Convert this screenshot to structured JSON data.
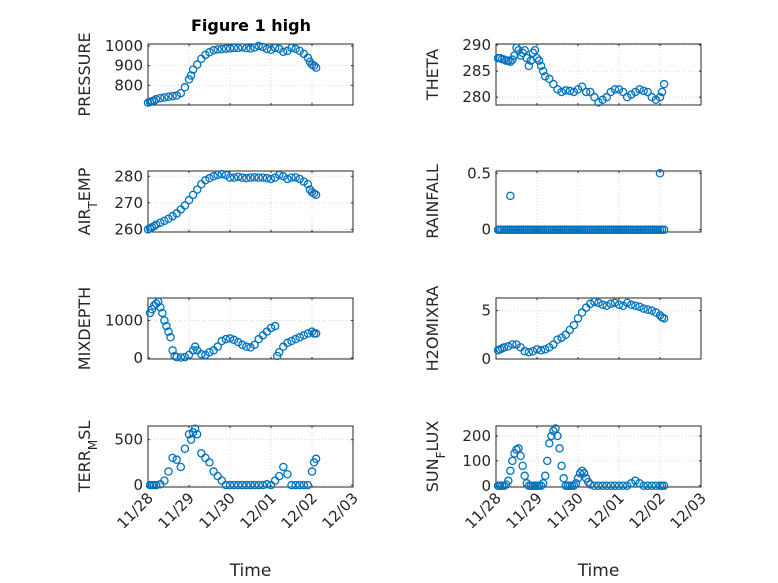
{
  "figure": {
    "title": "Figure 1 high"
  },
  "chart_data": [
    {
      "type": "scatter",
      "id": "pressure",
      "ylabel_parts": [
        [
          "PRESSURE",
          ""
        ]
      ],
      "ylim": [
        700,
        1010
      ],
      "yticks": [
        800,
        900,
        1000
      ],
      "xlim": [
        0,
        5
      ],
      "x": [
        0,
        0.05,
        0.1,
        0.15,
        0.2,
        0.3,
        0.4,
        0.5,
        0.6,
        0.7,
        0.8,
        0.9,
        1.0,
        1.05,
        1.1,
        1.2,
        1.3,
        1.4,
        1.5,
        1.6,
        1.7,
        1.8,
        1.9,
        2.0,
        2.1,
        2.2,
        2.3,
        2.4,
        2.5,
        2.6,
        2.7,
        2.8,
        2.9,
        3.0,
        3.1,
        3.2,
        3.3,
        3.4,
        3.5,
        3.6,
        3.7,
        3.8,
        3.9,
        3.95,
        4.0,
        4.05,
        4.1
      ],
      "y": [
        712,
        715,
        720,
        722,
        730,
        735,
        738,
        742,
        745,
        748,
        760,
        790,
        830,
        850,
        880,
        905,
        935,
        955,
        968,
        978,
        982,
        984,
        986,
        988,
        990,
        990,
        993,
        989,
        987,
        992,
        1000,
        995,
        985,
        980,
        990,
        985,
        970,
        975,
        990,
        985,
        975,
        960,
        940,
        920,
        905,
        900,
        890
      ]
    },
    {
      "type": "scatter",
      "id": "theta",
      "ylabel_parts": [
        [
          "THETA",
          ""
        ]
      ],
      "ylim": [
        278.5,
        290.2
      ],
      "yticks": [
        280,
        285,
        290
      ],
      "xlim": [
        0,
        5
      ],
      "x": [
        0.05,
        0.1,
        0.15,
        0.2,
        0.25,
        0.3,
        0.35,
        0.4,
        0.45,
        0.5,
        0.55,
        0.6,
        0.65,
        0.7,
        0.75,
        0.8,
        0.85,
        0.9,
        0.95,
        1.0,
        1.05,
        1.1,
        1.15,
        1.2,
        1.3,
        1.4,
        1.5,
        1.6,
        1.7,
        1.8,
        1.9,
        2.0,
        2.1,
        2.2,
        2.3,
        2.4,
        2.5,
        2.6,
        2.7,
        2.8,
        2.9,
        3.0,
        3.1,
        3.2,
        3.3,
        3.4,
        3.5,
        3.6,
        3.7,
        3.8,
        3.9,
        4.0,
        4.05,
        4.1
      ],
      "y": [
        287.5,
        287.5,
        287.3,
        287.2,
        287,
        287,
        286.8,
        287.2,
        288,
        289.5,
        289,
        288,
        288.5,
        289,
        287.5,
        286,
        287,
        288.5,
        289,
        287.5,
        287,
        286,
        285,
        284,
        283.5,
        282.5,
        281.5,
        281,
        281.3,
        281.2,
        281,
        281.5,
        282,
        281,
        281,
        280,
        279,
        279.5,
        280,
        281,
        281.5,
        281.5,
        281,
        280,
        280.5,
        281,
        281.5,
        281.2,
        281,
        280,
        279.5,
        280,
        281,
        282.5
      ]
    },
    {
      "type": "scatter",
      "id": "airtemp",
      "ylabel_parts": [
        [
          "AIR",
          ""
        ],
        [
          "T",
          "sub"
        ],
        [
          "EMP",
          ""
        ]
      ],
      "ylim": [
        259,
        282
      ],
      "yticks": [
        260,
        270,
        280
      ],
      "xlim": [
        0,
        5
      ],
      "x": [
        0,
        0.05,
        0.1,
        0.15,
        0.2,
        0.3,
        0.4,
        0.5,
        0.6,
        0.7,
        0.8,
        0.9,
        1.0,
        1.1,
        1.2,
        1.3,
        1.4,
        1.5,
        1.6,
        1.7,
        1.8,
        1.9,
        2.0,
        2.1,
        2.2,
        2.3,
        2.4,
        2.5,
        2.6,
        2.7,
        2.8,
        2.9,
        3.0,
        3.1,
        3.2,
        3.3,
        3.4,
        3.5,
        3.6,
        3.7,
        3.8,
        3.9,
        3.95,
        4.0,
        4.05,
        4.1
      ],
      "y": [
        260,
        260.3,
        260.8,
        261.2,
        261.8,
        262.5,
        263.2,
        264,
        265,
        266,
        267.5,
        269,
        271,
        273,
        275,
        277,
        278.5,
        279.3,
        280,
        280.5,
        280.8,
        280.5,
        279.5,
        279.5,
        279.8,
        279.5,
        279.3,
        279.5,
        279.6,
        279.5,
        279.5,
        279.3,
        279,
        279.5,
        280.5,
        280,
        279,
        279.5,
        279.6,
        279,
        278,
        277,
        275,
        274,
        273.5,
        273
      ]
    },
    {
      "type": "scatter",
      "id": "rainfall",
      "ylabel_parts": [
        [
          "RAINFALL",
          ""
        ]
      ],
      "ylim": [
        -0.02,
        0.52
      ],
      "yticks": [
        0,
        0.5
      ],
      "xlim": [
        0,
        5
      ],
      "x": [
        0.05,
        0.1,
        0.15,
        0.2,
        0.25,
        0.3,
        0.35,
        0.4,
        0.45,
        0.5,
        0.55,
        0.6,
        0.65,
        0.7,
        0.75,
        0.8,
        0.85,
        0.9,
        0.95,
        1.0,
        1.05,
        1.1,
        1.15,
        1.2,
        1.25,
        1.3,
        1.35,
        1.4,
        1.45,
        1.5,
        1.55,
        1.6,
        1.65,
        1.7,
        1.75,
        1.8,
        1.85,
        1.9,
        1.95,
        2.0,
        2.05,
        2.1,
        2.15,
        2.2,
        2.25,
        2.3,
        2.35,
        2.4,
        2.45,
        2.5,
        2.55,
        2.6,
        2.65,
        2.7,
        2.75,
        2.8,
        2.85,
        2.9,
        2.95,
        3.0,
        3.05,
        3.1,
        3.15,
        3.2,
        3.25,
        3.3,
        3.35,
        3.4,
        3.45,
        3.5,
        3.55,
        3.6,
        3.65,
        3.7,
        3.75,
        3.8,
        3.85,
        3.9,
        3.95,
        4.0,
        4.05,
        4.1,
        0.35,
        4.0
      ],
      "y": [
        0,
        0,
        0,
        0,
        0,
        0,
        0,
        0,
        0,
        0,
        0,
        0,
        0,
        0,
        0,
        0,
        0,
        0,
        0,
        0,
        0,
        0,
        0,
        0,
        0,
        0,
        0,
        0,
        0,
        0,
        0,
        0,
        0,
        0,
        0,
        0,
        0,
        0,
        0,
        0,
        0,
        0,
        0,
        0,
        0,
        0,
        0,
        0,
        0,
        0,
        0,
        0,
        0,
        0,
        0,
        0,
        0,
        0,
        0,
        0,
        0,
        0,
        0,
        0,
        0,
        0,
        0,
        0,
        0,
        0,
        0,
        0,
        0,
        0,
        0,
        0,
        0,
        0,
        0,
        0,
        0,
        0,
        0.3,
        0.5
      ]
    },
    {
      "type": "scatter",
      "id": "mixdepth",
      "ylabel_parts": [
        [
          "MIXDEPTH",
          ""
        ]
      ],
      "ylim": [
        -30,
        1600
      ],
      "yticks": [
        0,
        1000
      ],
      "xlim": [
        0,
        5
      ],
      "x": [
        0.05,
        0.1,
        0.15,
        0.2,
        0.25,
        0.3,
        0.35,
        0.4,
        0.45,
        0.5,
        0.55,
        0.6,
        0.65,
        0.7,
        0.8,
        0.9,
        1.0,
        1.1,
        1.15,
        1.2,
        1.3,
        1.4,
        1.5,
        1.6,
        1.7,
        1.8,
        1.9,
        2.0,
        2.1,
        2.2,
        2.3,
        2.4,
        2.5,
        2.6,
        2.7,
        2.8,
        2.9,
        3.0,
        3.1,
        3.15,
        3.2,
        3.3,
        3.4,
        3.5,
        3.6,
        3.7,
        3.8,
        3.9,
        4.0,
        4.05,
        4.1
      ],
      "y": [
        1200,
        1300,
        1400,
        1450,
        1500,
        1350,
        1200,
        1000,
        850,
        700,
        550,
        200,
        50,
        20,
        10,
        20,
        80,
        200,
        300,
        200,
        100,
        80,
        150,
        200,
        300,
        450,
        500,
        520,
        480,
        420,
        350,
        300,
        280,
        350,
        500,
        600,
        700,
        800,
        850,
        50,
        150,
        300,
        400,
        450,
        500,
        550,
        600,
        650,
        700,
        650,
        650
      ]
    },
    {
      "type": "scatter",
      "id": "h2omixra",
      "ylabel_parts": [
        [
          "H2OMIXRA",
          ""
        ]
      ],
      "ylim": [
        0,
        6.3
      ],
      "yticks": [
        0,
        5
      ],
      "xlim": [
        0,
        5
      ],
      "x": [
        0.05,
        0.1,
        0.15,
        0.2,
        0.3,
        0.4,
        0.5,
        0.6,
        0.7,
        0.8,
        0.9,
        1.0,
        1.1,
        1.2,
        1.3,
        1.4,
        1.5,
        1.6,
        1.7,
        1.8,
        1.9,
        2.0,
        2.1,
        2.2,
        2.3,
        2.4,
        2.5,
        2.6,
        2.7,
        2.8,
        2.9,
        3.0,
        3.1,
        3.2,
        3.3,
        3.4,
        3.5,
        3.6,
        3.7,
        3.8,
        3.9,
        4.0,
        4.05,
        4.1
      ],
      "y": [
        0.9,
        1.0,
        1.1,
        1.2,
        1.3,
        1.5,
        1.5,
        1.2,
        0.8,
        0.7,
        0.8,
        1.0,
        0.9,
        1.0,
        1.2,
        1.5,
        2.0,
        2.2,
        2.5,
        3.0,
        3.5,
        4.2,
        4.8,
        5.3,
        5.7,
        5.9,
        5.8,
        5.6,
        5.5,
        5.7,
        5.8,
        5.6,
        5.5,
        5.8,
        5.6,
        5.5,
        5.4,
        5.2,
        5.1,
        5.0,
        4.8,
        4.5,
        4.3,
        4.2
      ]
    },
    {
      "type": "scatter",
      "id": "terrmsl",
      "ylabel_parts": [
        [
          "TERR",
          ""
        ],
        [
          "M",
          "sub"
        ],
        [
          "SL",
          ""
        ]
      ],
      "ylim": [
        -20,
        650
      ],
      "yticks": [
        0,
        500
      ],
      "xlim": [
        0,
        5
      ],
      "x": [
        0.05,
        0.1,
        0.15,
        0.2,
        0.3,
        0.4,
        0.5,
        0.6,
        0.7,
        0.8,
        0.9,
        1.0,
        1.05,
        1.1,
        1.15,
        1.2,
        1.3,
        1.4,
        1.5,
        1.6,
        1.7,
        1.8,
        1.9,
        2.0,
        2.1,
        2.2,
        2.3,
        2.4,
        2.5,
        2.6,
        2.7,
        2.8,
        2.9,
        3.0,
        3.1,
        3.2,
        3.3,
        3.4,
        3.5,
        3.6,
        3.7,
        3.8,
        3.9,
        4.0,
        4.05,
        4.1
      ],
      "y": [
        0,
        0,
        0,
        0,
        10,
        50,
        150,
        300,
        280,
        200,
        400,
        560,
        500,
        580,
        620,
        560,
        350,
        300,
        250,
        150,
        100,
        50,
        0,
        0,
        0,
        0,
        0,
        0,
        0,
        0,
        0,
        0,
        10,
        0,
        50,
        100,
        200,
        120,
        0,
        0,
        0,
        0,
        0,
        150,
        250,
        290
      ]
    },
    {
      "type": "scatter",
      "id": "sunflux",
      "ylabel_parts": [
        [
          "SUN",
          ""
        ],
        [
          "F",
          "sub"
        ],
        [
          "LUX",
          ""
        ]
      ],
      "ylim": [
        -5,
        240
      ],
      "yticks": [
        0,
        100,
        200
      ],
      "xlim": [
        0,
        5
      ],
      "x": [
        0.05,
        0.1,
        0.15,
        0.2,
        0.25,
        0.3,
        0.35,
        0.4,
        0.45,
        0.5,
        0.55,
        0.6,
        0.65,
        0.7,
        0.75,
        0.8,
        0.85,
        0.9,
        0.95,
        1.0,
        1.05,
        1.1,
        1.15,
        1.2,
        1.25,
        1.3,
        1.35,
        1.4,
        1.45,
        1.5,
        1.55,
        1.6,
        1.65,
        1.7,
        1.75,
        1.8,
        1.85,
        1.9,
        1.95,
        2.0,
        2.05,
        2.1,
        2.15,
        2.2,
        2.25,
        2.3,
        2.4,
        2.5,
        2.6,
        2.7,
        2.8,
        2.9,
        3.0,
        3.1,
        3.2,
        3.3,
        3.4,
        3.5,
        3.6,
        3.7,
        3.8,
        3.9,
        4.0,
        4.05,
        4.1
      ],
      "y": [
        0,
        0,
        0,
        0,
        5,
        20,
        60,
        100,
        130,
        145,
        150,
        120,
        80,
        40,
        10,
        0,
        0,
        0,
        0,
        0,
        0,
        0,
        10,
        40,
        100,
        170,
        200,
        220,
        230,
        200,
        150,
        80,
        30,
        0,
        0,
        0,
        0,
        0,
        10,
        30,
        50,
        60,
        50,
        30,
        15,
        5,
        0,
        0,
        0,
        0,
        0,
        0,
        0,
        0,
        0,
        10,
        20,
        10,
        0,
        0,
        0,
        0,
        0,
        0,
        0
      ]
    }
  ],
  "xaxis": {
    "ticks": [
      0,
      1,
      2,
      3,
      4,
      5
    ],
    "ticklabels": [
      "11/28",
      "11/29",
      "11/30",
      "12/01",
      "12/02",
      "12/03"
    ],
    "label": "Time"
  },
  "style": {
    "marker_color": "#0072BD",
    "axis_color": "#262626",
    "grid_color": "#d9d9d9"
  }
}
